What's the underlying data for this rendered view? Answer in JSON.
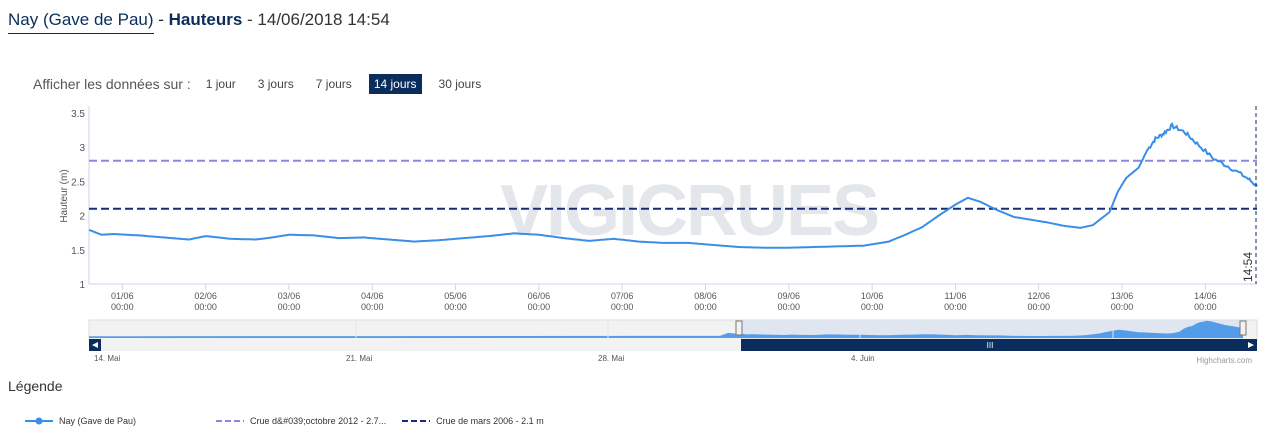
{
  "header": {
    "station": "Nay (Gave de Pau)",
    "sep": " - ",
    "kind": "Hauteurs",
    "date": " - 14/06/2018 14:54"
  },
  "range": {
    "label": "Afficher les données sur :",
    "buttons": [
      {
        "label": "1 jour",
        "active": false
      },
      {
        "label": "3 jours",
        "active": false
      },
      {
        "label": "7 jours",
        "active": false
      },
      {
        "label": "14 jours",
        "active": true
      },
      {
        "label": "30 jours",
        "active": false
      }
    ]
  },
  "watermark": "VIGICRUES",
  "credit": "Highcharts.com",
  "legend": {
    "title": "Légende",
    "items": [
      {
        "label": "Nay (Gave de Pau)"
      },
      {
        "label": "Crue d&#039;octobre 2012 - 2.7..."
      },
      {
        "label": "Crue de mars 2006 - 2.1 m"
      }
    ]
  },
  "colors": {
    "series": "#3a8ee6",
    "crue2012": "#8888e0",
    "crue2006": "#1a2a7a",
    "nav_fill": "#0b2d5c"
  },
  "chart_data": {
    "type": "line",
    "title": "",
    "ylabel": "Hauteur (m)",
    "ylim": [
      1,
      3.6
    ],
    "yticks": [
      "1",
      "1.5",
      "2",
      "2.5",
      "3",
      "3.5"
    ],
    "xlim_days": [
      0.6,
      14.62
    ],
    "xticks": [
      {
        "date": "01/06",
        "time": "00:00"
      },
      {
        "date": "02/06",
        "time": "00:00"
      },
      {
        "date": "03/06",
        "time": "00:00"
      },
      {
        "date": "04/06",
        "time": "00:00"
      },
      {
        "date": "05/06",
        "time": "00:00"
      },
      {
        "date": "06/06",
        "time": "00:00"
      },
      {
        "date": "07/06",
        "time": "00:00"
      },
      {
        "date": "08/06",
        "time": "00:00"
      },
      {
        "date": "09/06",
        "time": "00:00"
      },
      {
        "date": "10/06",
        "time": "00:00"
      },
      {
        "date": "11/06",
        "time": "00:00"
      },
      {
        "date": "12/06",
        "time": "00:00"
      },
      {
        "date": "13/06",
        "time": "00:00"
      },
      {
        "date": "14/06",
        "time": "00:00"
      }
    ],
    "series": [
      {
        "name": "Nay (Gave de Pau)",
        "points": [
          [
            0.6,
            1.79
          ],
          [
            0.75,
            1.72
          ],
          [
            0.9,
            1.73
          ],
          [
            1.2,
            1.71
          ],
          [
            1.5,
            1.68
          ],
          [
            1.8,
            1.65
          ],
          [
            2.0,
            1.7
          ],
          [
            2.3,
            1.66
          ],
          [
            2.6,
            1.65
          ],
          [
            2.8,
            1.68
          ],
          [
            3.0,
            1.72
          ],
          [
            3.3,
            1.71
          ],
          [
            3.6,
            1.67
          ],
          [
            3.9,
            1.68
          ],
          [
            4.2,
            1.65
          ],
          [
            4.5,
            1.62
          ],
          [
            4.8,
            1.64
          ],
          [
            5.1,
            1.67
          ],
          [
            5.4,
            1.7
          ],
          [
            5.7,
            1.74
          ],
          [
            6.0,
            1.72
          ],
          [
            6.3,
            1.67
          ],
          [
            6.6,
            1.63
          ],
          [
            6.9,
            1.66
          ],
          [
            7.2,
            1.62
          ],
          [
            7.5,
            1.6
          ],
          [
            7.8,
            1.6
          ],
          [
            8.1,
            1.57
          ],
          [
            8.4,
            1.54
          ],
          [
            8.7,
            1.53
          ],
          [
            9.0,
            1.53
          ],
          [
            9.3,
            1.54
          ],
          [
            9.6,
            1.55
          ],
          [
            9.9,
            1.56
          ],
          [
            10.2,
            1.62
          ],
          [
            10.4,
            1.72
          ],
          [
            10.6,
            1.83
          ],
          [
            10.8,
            2.0
          ],
          [
            11.0,
            2.16
          ],
          [
            11.15,
            2.26
          ],
          [
            11.3,
            2.2
          ],
          [
            11.5,
            2.08
          ],
          [
            11.7,
            1.98
          ],
          [
            11.9,
            1.94
          ],
          [
            12.1,
            1.9
          ],
          [
            12.3,
            1.85
          ],
          [
            12.5,
            1.82
          ],
          [
            12.65,
            1.86
          ],
          [
            12.85,
            2.05
          ],
          [
            12.95,
            2.35
          ],
          [
            13.05,
            2.55
          ],
          [
            13.2,
            2.7
          ],
          [
            13.3,
            2.95
          ],
          [
            13.4,
            3.12
          ],
          [
            13.5,
            3.2
          ],
          [
            13.6,
            3.31
          ],
          [
            13.75,
            3.22
          ],
          [
            13.9,
            3.05
          ],
          [
            14.1,
            2.83
          ],
          [
            14.3,
            2.7
          ],
          [
            14.5,
            2.55
          ],
          [
            14.62,
            2.43
          ]
        ]
      }
    ],
    "thresholds": [
      {
        "name": "Crue d&#039;octobre 2012 - 2.7...",
        "value": 2.8
      },
      {
        "name": "Crue de mars 2006 - 2.1 m",
        "value": 2.1
      }
    ],
    "now_label": "14:54",
    "navigator": {
      "labels": [
        "14. Mai",
        "21. Mai",
        "28. Mai",
        "4. Juin"
      ],
      "scrollbar_mark": "III"
    }
  }
}
